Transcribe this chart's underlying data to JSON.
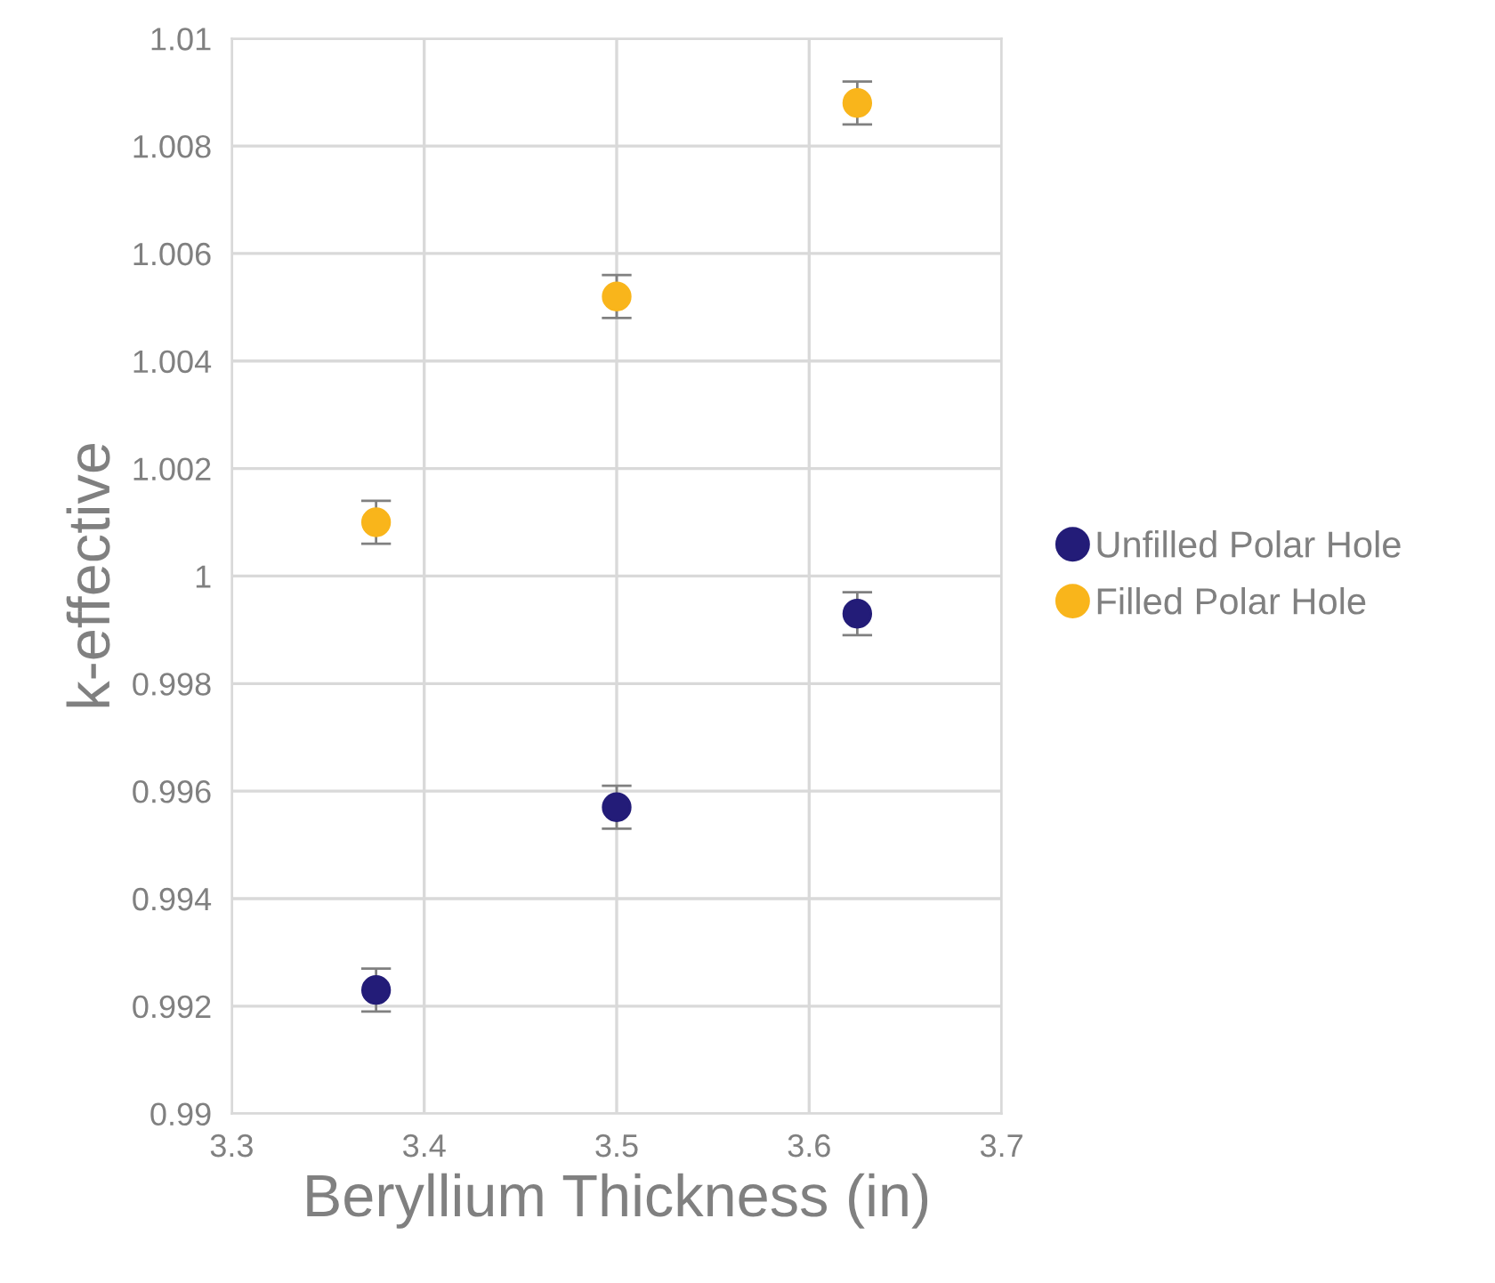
{
  "chart_data": {
    "type": "scatter",
    "xlabel": "Beryllium Thickness (in)",
    "ylabel": "k-effective",
    "series": [
      {
        "name": "Unfilled Polar Hole",
        "color": "#231c78",
        "x": [
          3.375,
          3.5,
          3.625
        ],
        "values": [
          0.9923,
          0.9957,
          0.9993
        ],
        "errors": [
          0.0004,
          0.0004,
          0.0004
        ]
      },
      {
        "name": "Filled Polar Hole",
        "color": "#f9b51b",
        "x": [
          3.375,
          3.5,
          3.625
        ],
        "values": [
          1.001,
          1.0052,
          1.0088
        ],
        "errors": [
          0.0004,
          0.0004,
          0.0004
        ]
      }
    ],
    "xlim": [
      3.3,
      3.7
    ],
    "xticks": [
      3.3,
      3.4,
      3.5,
      3.6,
      3.7
    ],
    "ylim": [
      0.99,
      1.01
    ],
    "yticks": [
      0.99,
      0.992,
      0.994,
      0.996,
      0.998,
      1,
      1.002,
      1.004,
      1.006,
      1.008,
      1.01
    ],
    "grid": true,
    "legend": "right",
    "marker": "circle"
  }
}
